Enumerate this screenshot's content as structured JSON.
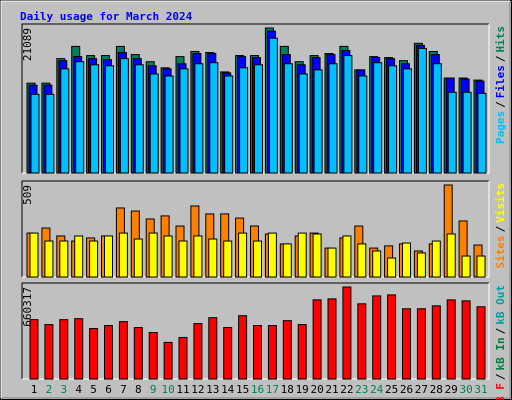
{
  "title": "Daily usage for March 2024",
  "legend_separator": "/",
  "chart_data": [
    {
      "type": "bar",
      "ylim": [
        0,
        21089
      ],
      "yticks": [
        21089
      ],
      "series": [
        {
          "name": "Hits",
          "color": "#00805c",
          "values": [
            13068,
            13068,
            16632,
            18414,
            17078,
            17078,
            18414,
            17226,
            16187,
            15296,
            16929,
            17672,
            17523,
            14702,
            17078,
            17078,
            21089,
            18414,
            16187,
            17078,
            17375,
            18414,
            14999,
            16929,
            16781,
            16335,
            18860,
            17672,
            13811,
            13811,
            13514
          ]
        },
        {
          "name": "Files",
          "color": "#0000ff",
          "values": [
            12771,
            12771,
            16335,
            16929,
            16632,
            16484,
            17523,
            16632,
            15593,
            15147,
            15890,
            17375,
            17375,
            14553,
            16929,
            16781,
            20642,
            17226,
            15741,
            16781,
            17226,
            17820,
            14999,
            16781,
            16632,
            15890,
            18563,
            17226,
            13811,
            13662,
            13365
          ]
        },
        {
          "name": "Pages",
          "color": "#00c0ff",
          "values": [
            11435,
            11435,
            15147,
            16187,
            15741,
            15593,
            16632,
            15741,
            14405,
            14108,
            15147,
            15890,
            16038,
            14108,
            15296,
            15741,
            19602,
            15890,
            14405,
            14999,
            15890,
            17078,
            14108,
            16038,
            15593,
            15147,
            18117,
            15890,
            11732,
            11732,
            11583
          ]
        }
      ]
    },
    {
      "type": "bar",
      "ylim": [
        0,
        509
      ],
      "yticks": [
        509
      ],
      "series": [
        {
          "name": "Visits",
          "color": "#ffff00",
          "values": [
            243,
            199,
            199,
            227,
            199,
            227,
            243,
            210,
            243,
            227,
            199,
            227,
            210,
            199,
            243,
            199,
            243,
            183,
            243,
            238,
            160,
            227,
            183,
            144,
            105,
            188,
            133,
            199,
            238,
            116,
            116
          ]
        },
        {
          "name": "Sites",
          "color": "#ff8000",
          "values": [
            243,
            271,
            227,
            199,
            216,
            227,
            382,
            365,
            321,
            338,
            282,
            393,
            349,
            349,
            326,
            282,
            238,
            183,
            227,
            243,
            160,
            216,
            282,
            160,
            172,
            183,
            144,
            183,
            509,
            310,
            177
          ]
        }
      ]
    },
    {
      "type": "bar",
      "ylim": [
        0,
        660317
      ],
      "yticks": [
        660317
      ],
      "categories": [
        "1",
        "2",
        "3",
        "4",
        "5",
        "6",
        "7",
        "8",
        "9",
        "10",
        "11",
        "12",
        "13",
        "14",
        "15",
        "16",
        "17",
        "18",
        "19",
        "20",
        "21",
        "22",
        "23",
        "24",
        "25",
        "26",
        "27",
        "28",
        "29",
        "30",
        "31"
      ],
      "category_colors": [
        "#000000",
        "#00805c",
        "#00805c",
        "#000000",
        "#000000",
        "#000000",
        "#000000",
        "#000000",
        "#00805c",
        "#00805c",
        "#000000",
        "#000000",
        "#000000",
        "#000000",
        "#000000",
        "#00805c",
        "#00805c",
        "#000000",
        "#000000",
        "#000000",
        "#000000",
        "#000000",
        "#00805c",
        "#00805c",
        "#000000",
        "#000000",
        "#000000",
        "#000000",
        "#000000",
        "#00805c",
        "#00805c"
      ],
      "series": [
        {
          "name": "kB F",
          "color": "#ff0000",
          "values": [
            426012,
            390511,
            426012,
            433112,
            362110,
            383411,
            411812,
            369210,
            333709,
            262707,
            298208,
            397611,
            440212,
            369210,
            454413,
            383411,
            383411,
            418912,
            390511,
            568016,
            575116,
            660317,
            539615,
            596417,
            603517,
            504114,
            504114,
            525415,
            568016,
            560916,
            518315
          ]
        }
      ],
      "legend_only": [
        {
          "name": "kB In",
          "color": "#008040"
        },
        {
          "name": "kB Out",
          "color": "#00a0a0"
        }
      ]
    }
  ]
}
